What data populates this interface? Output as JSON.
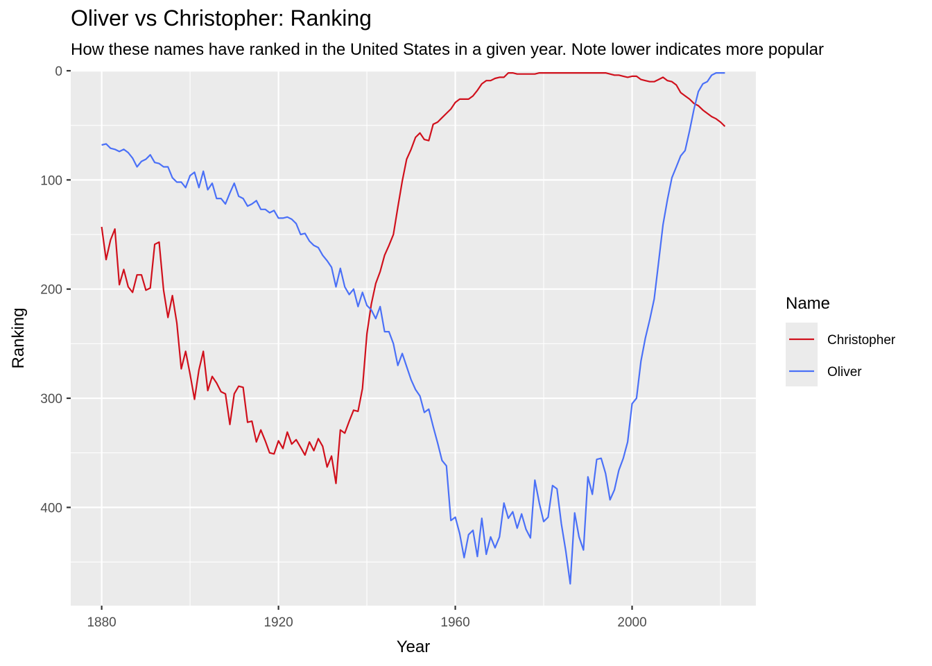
{
  "chart_data": {
    "type": "line",
    "title": "Oliver vs Christopher: Ranking",
    "subtitle": "How these names have ranked in the United States in a given year. Note lower indicates more popular",
    "xlabel": "Year",
    "ylabel": "Ranking",
    "xlim": [
      1873,
      2028
    ],
    "ylim": [
      0,
      490
    ],
    "y_reversed": true,
    "x_ticks": [
      1880,
      1920,
      1960,
      2000
    ],
    "y_ticks": [
      0,
      100,
      200,
      300,
      400
    ],
    "grid": true,
    "legend": {
      "title": "Name",
      "placement": "right"
    },
    "series": [
      {
        "name": "Christopher",
        "color": "#d0101c",
        "x": [
          1880,
          1881,
          1882,
          1883,
          1884,
          1885,
          1886,
          1887,
          1888,
          1889,
          1890,
          1891,
          1892,
          1893,
          1894,
          1895,
          1896,
          1897,
          1898,
          1899,
          1900,
          1901,
          1902,
          1903,
          1904,
          1905,
          1906,
          1907,
          1908,
          1909,
          1910,
          1911,
          1912,
          1913,
          1914,
          1915,
          1916,
          1917,
          1918,
          1919,
          1920,
          1921,
          1922,
          1923,
          1924,
          1925,
          1926,
          1927,
          1928,
          1929,
          1930,
          1931,
          1932,
          1933,
          1934,
          1935,
          1936,
          1937,
          1938,
          1939,
          1940,
          1941,
          1942,
          1943,
          1944,
          1945,
          1946,
          1947,
          1948,
          1949,
          1950,
          1951,
          1952,
          1953,
          1954,
          1955,
          1956,
          1957,
          1958,
          1959,
          1960,
          1961,
          1962,
          1963,
          1964,
          1965,
          1966,
          1967,
          1968,
          1969,
          1970,
          1971,
          1972,
          1973,
          1974,
          1975,
          1976,
          1977,
          1978,
          1979,
          1980,
          1981,
          1982,
          1983,
          1984,
          1985,
          1986,
          1987,
          1988,
          1989,
          1990,
          1991,
          1992,
          1993,
          1994,
          1995,
          1996,
          1997,
          1998,
          1999,
          2000,
          2001,
          2002,
          2003,
          2004,
          2005,
          2006,
          2007,
          2008,
          2009,
          2010,
          2011,
          2012,
          2013,
          2014,
          2015,
          2016,
          2017,
          2018,
          2019,
          2020,
          2021
        ],
        "values": [
          143,
          173,
          155,
          145,
          196,
          182,
          198,
          203,
          187,
          187,
          201,
          199,
          159,
          157,
          201,
          226,
          206,
          231,
          273,
          257,
          278,
          301,
          274,
          257,
          293,
          280,
          286,
          294,
          296,
          324,
          296,
          289,
          290,
          322,
          321,
          340,
          329,
          339,
          350,
          351,
          339,
          346,
          331,
          342,
          338,
          345,
          352,
          340,
          348,
          337,
          344,
          363,
          353,
          378,
          329,
          332,
          321,
          311,
          312,
          291,
          241,
          214,
          195,
          184,
          169,
          160,
          150,
          125,
          101,
          81,
          72,
          61,
          57,
          63,
          64,
          49,
          47,
          43,
          39,
          35,
          29,
          26,
          26,
          26,
          23,
          18,
          12,
          9,
          9,
          7,
          6,
          6,
          2,
          2,
          3,
          3,
          3,
          3,
          3,
          2,
          2,
          2,
          2,
          2,
          2,
          2,
          2,
          2,
          2,
          2,
          2,
          2,
          2,
          2,
          2,
          3,
          4,
          4,
          5,
          6,
          5,
          5,
          8,
          9,
          10,
          10,
          8,
          6,
          9,
          10,
          13,
          20,
          23,
          26,
          30,
          32,
          36,
          39,
          42,
          44,
          47,
          51
        ]
      },
      {
        "name": "Oliver",
        "color": "#4a70f7",
        "x": [
          1880,
          1881,
          1882,
          1883,
          1884,
          1885,
          1886,
          1887,
          1888,
          1889,
          1890,
          1891,
          1892,
          1893,
          1894,
          1895,
          1896,
          1897,
          1898,
          1899,
          1900,
          1901,
          1902,
          1903,
          1904,
          1905,
          1906,
          1907,
          1908,
          1909,
          1910,
          1911,
          1912,
          1913,
          1914,
          1915,
          1916,
          1917,
          1918,
          1919,
          1920,
          1921,
          1922,
          1923,
          1924,
          1925,
          1926,
          1927,
          1928,
          1929,
          1930,
          1931,
          1932,
          1933,
          1934,
          1935,
          1936,
          1937,
          1938,
          1939,
          1940,
          1941,
          1942,
          1943,
          1944,
          1945,
          1946,
          1947,
          1948,
          1949,
          1950,
          1951,
          1952,
          1953,
          1954,
          1955,
          1956,
          1957,
          1958,
          1959,
          1960,
          1961,
          1962,
          1963,
          1964,
          1965,
          1966,
          1967,
          1968,
          1969,
          1970,
          1971,
          1972,
          1973,
          1974,
          1975,
          1976,
          1977,
          1978,
          1979,
          1980,
          1981,
          1982,
          1983,
          1984,
          1985,
          1986,
          1987,
          1988,
          1989,
          1990,
          1991,
          1992,
          1993,
          1994,
          1995,
          1996,
          1997,
          1998,
          1999,
          2000,
          2001,
          2002,
          2003,
          2004,
          2005,
          2006,
          2007,
          2008,
          2009,
          2010,
          2011,
          2012,
          2013,
          2014,
          2015,
          2016,
          2017,
          2018,
          2019,
          2020,
          2021
        ],
        "values": [
          68,
          67,
          71,
          72,
          74,
          72,
          75,
          80,
          88,
          83,
          81,
          77,
          84,
          85,
          88,
          88,
          98,
          102,
          102,
          107,
          96,
          93,
          107,
          92,
          109,
          103,
          117,
          117,
          122,
          112,
          103,
          115,
          117,
          124,
          122,
          119,
          127,
          127,
          130,
          128,
          135,
          135,
          134,
          136,
          140,
          150,
          149,
          156,
          160,
          162,
          169,
          174,
          180,
          198,
          181,
          198,
          205,
          200,
          216,
          203,
          215,
          219,
          227,
          216,
          239,
          239,
          250,
          270,
          259,
          271,
          283,
          292,
          298,
          313,
          310,
          326,
          341,
          357,
          362,
          412,
          409,
          424,
          446,
          425,
          421,
          445,
          410,
          443,
          427,
          437,
          427,
          396,
          410,
          404,
          419,
          406,
          420,
          428,
          375,
          396,
          413,
          409,
          380,
          383,
          415,
          440,
          470,
          405,
          427,
          439,
          372,
          388,
          356,
          355,
          369,
          393,
          384,
          366,
          355,
          340,
          305,
          300,
          266,
          245,
          228,
          209,
          175,
          141,
          118,
          98,
          88,
          78,
          73,
          55,
          35,
          19,
          12,
          10,
          4,
          2,
          2,
          2
        ]
      }
    ]
  }
}
